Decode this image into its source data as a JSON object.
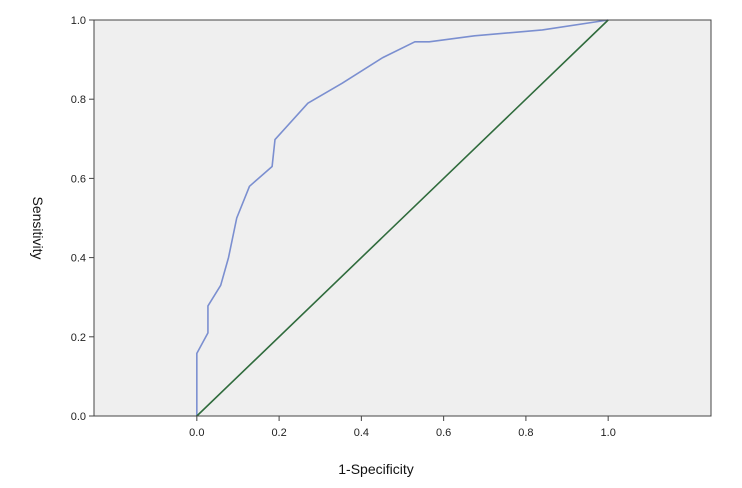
{
  "chart_data": {
    "type": "line",
    "title": "",
    "xlabel": "1-Specificity",
    "ylabel": "Sensitivity",
    "xlim": [
      -0.25,
      1.25
    ],
    "ylim": [
      0,
      1
    ],
    "x_ticks": [
      "0.0",
      "0.2",
      "0.4",
      "0.6",
      "0.8",
      "1.0"
    ],
    "y_ticks": [
      "0.0",
      "0.2",
      "0.4",
      "0.6",
      "0.8",
      "1.0"
    ],
    "grid": false,
    "legend": "none",
    "background_color": "#efefef",
    "series": [
      {
        "color": "#7b8fd0",
        "x": [
          0.0,
          0.0,
          0.027,
          0.027,
          0.058,
          0.077,
          0.097,
          0.128,
          0.183,
          0.19,
          0.27,
          0.353,
          0.452,
          0.53,
          0.565,
          0.675,
          0.84,
          1.0
        ],
        "y": [
          0.0,
          0.158,
          0.21,
          0.278,
          0.33,
          0.4,
          0.5,
          0.58,
          0.63,
          0.698,
          0.79,
          0.84,
          0.905,
          0.945,
          0.945,
          0.96,
          0.975,
          1.0
        ]
      },
      {
        "color": "#2f6b3c",
        "x": [
          0.0,
          1.0
        ],
        "y": [
          0.0,
          1.0
        ]
      }
    ]
  }
}
